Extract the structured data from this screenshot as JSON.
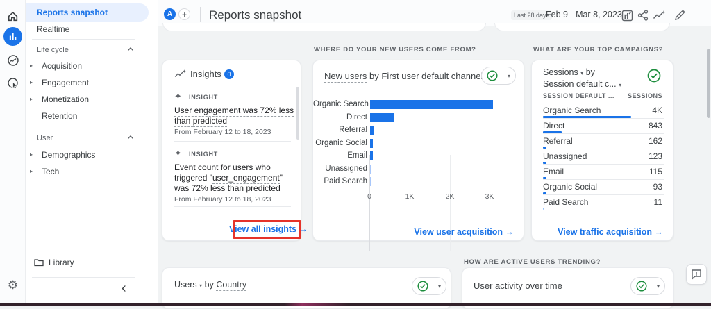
{
  "colors": {
    "accent_blue": "#1a73e8",
    "active_pill_bg": "#e8f0fe",
    "green_check": "#1e8e3e",
    "annotation_red": "#e5332a",
    "bar_blue": "#1a73e8",
    "bar_light_blue": "#a8c7fa",
    "text_dark": "#3c4043",
    "text_grey": "#5f6368"
  },
  "icons": {
    "arrow_right": "→",
    "caret_down": "▾",
    "expand_arrow": "▸",
    "collapse_chevron": "‹",
    "gear": "⚙",
    "plus": "+",
    "sparkle": "✦"
  },
  "header": {
    "avatar": "A",
    "title": "Reports snapshot",
    "date_label": "Last 28 days",
    "date_range": "Feb 9 - Mar 8, 2023"
  },
  "sidebar": {
    "items": [
      {
        "label": "Reports snapshot"
      },
      {
        "label": "Realtime"
      }
    ],
    "sections": [
      {
        "label": "Life cycle",
        "items": [
          {
            "label": "Acquisition"
          },
          {
            "label": "Engagement"
          },
          {
            "label": "Monetization"
          },
          {
            "label": "Retention"
          }
        ]
      },
      {
        "label": "User",
        "items": [
          {
            "label": "Demographics"
          },
          {
            "label": "Tech"
          }
        ]
      }
    ],
    "library_label": "Library"
  },
  "insights_card": {
    "title": "Insights",
    "badge": "0",
    "item_tag": "INSIGHT",
    "items": [
      {
        "t1": "User engagement was 72% less than ",
        "t2": "predicted",
        "t3": "",
        "date": "From February 12 to 18, 2023"
      },
      {
        "t1": "Event count for users who triggered \"",
        "t2": "user_engagement",
        "t3": "\" was 72% less than predicted",
        "date": "From February 12 to 18, 2023"
      }
    ],
    "link": "View all insights"
  },
  "new_users_card": {
    "section": "WHERE DO YOUR NEW USERS COME FROM?",
    "title_dashed": "New users",
    "title_rest": " by First user default channel group",
    "link": "View user acquisition",
    "chart": {
      "type": "bar",
      "orientation": "horizontal",
      "categories": [
        "Organic Search",
        "Direct",
        "Referral",
        "Organic Social",
        "Email",
        "Unassigned",
        "Paid Search"
      ],
      "values": [
        3060,
        600,
        80,
        65,
        65,
        20,
        5
      ],
      "bar_colors": [
        "#1a73e8",
        "#1a73e8",
        "#1a73e8",
        "#1a73e8",
        "#1a73e8",
        "#a8c7fa",
        "#a8c7fa"
      ],
      "xticks": [
        "0",
        "1K",
        "2K",
        "3K"
      ],
      "xlim": [
        0,
        3600
      ],
      "grid": true
    }
  },
  "campaigns_card": {
    "section": "WHAT ARE YOUR TOP CAMPAIGNS?",
    "metric": "Sessions",
    "by": "by",
    "dimension": "Session default c...",
    "col1": "SESSION DEFAULT ...",
    "col2": "SESSIONS",
    "rows": [
      {
        "label": "Organic Search",
        "value": "4K",
        "n": 4000
      },
      {
        "label": "Direct",
        "value": "843",
        "n": 843
      },
      {
        "label": "Referral",
        "value": "162",
        "n": 162
      },
      {
        "label": "Unassigned",
        "value": "123",
        "n": 123
      },
      {
        "label": "Email",
        "value": "115",
        "n": 115
      },
      {
        "label": "Organic Social",
        "value": "93",
        "n": 93
      },
      {
        "label": "Paid Search",
        "value": "11",
        "n": 11
      }
    ],
    "link": "View traffic acquisition"
  },
  "users_country_card": {
    "metric": "Users",
    "by": "by",
    "dimension": "Country"
  },
  "active_users_card": {
    "section": "HOW ARE ACTIVE USERS TRENDING?",
    "title": "User activity over time"
  }
}
